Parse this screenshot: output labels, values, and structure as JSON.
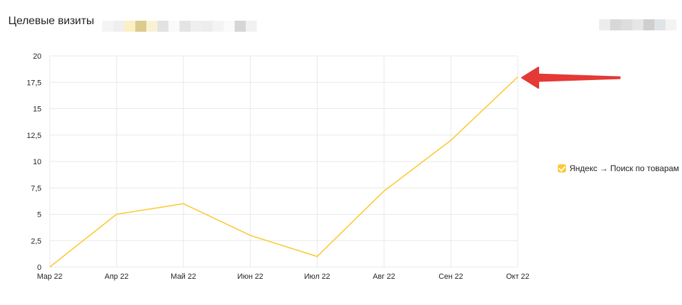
{
  "header": {
    "title": "Целевые визиты"
  },
  "chart_data": {
    "type": "line",
    "categories": [
      "Мар 22",
      "Апр 22",
      "Май 22",
      "Июн 22",
      "Июл 22",
      "Авг 22",
      "Сен 22",
      "Окт 22"
    ],
    "series": [
      {
        "name": "Яндекс → Поиск по товарам",
        "values": [
          0,
          5,
          6,
          3,
          1,
          7.2,
          12,
          18
        ],
        "color": "#fcc934"
      }
    ],
    "ylim": [
      0,
      20
    ],
    "yticks": [
      "0",
      "2,5",
      "5",
      "7,5",
      "10",
      "12,5",
      "15",
      "17,5",
      "20"
    ],
    "grid": true,
    "legend_position": "right",
    "annotation": {
      "type": "arrow",
      "color": "#e53935",
      "points_to": "Окт 22"
    }
  },
  "legend": {
    "checked": true
  }
}
